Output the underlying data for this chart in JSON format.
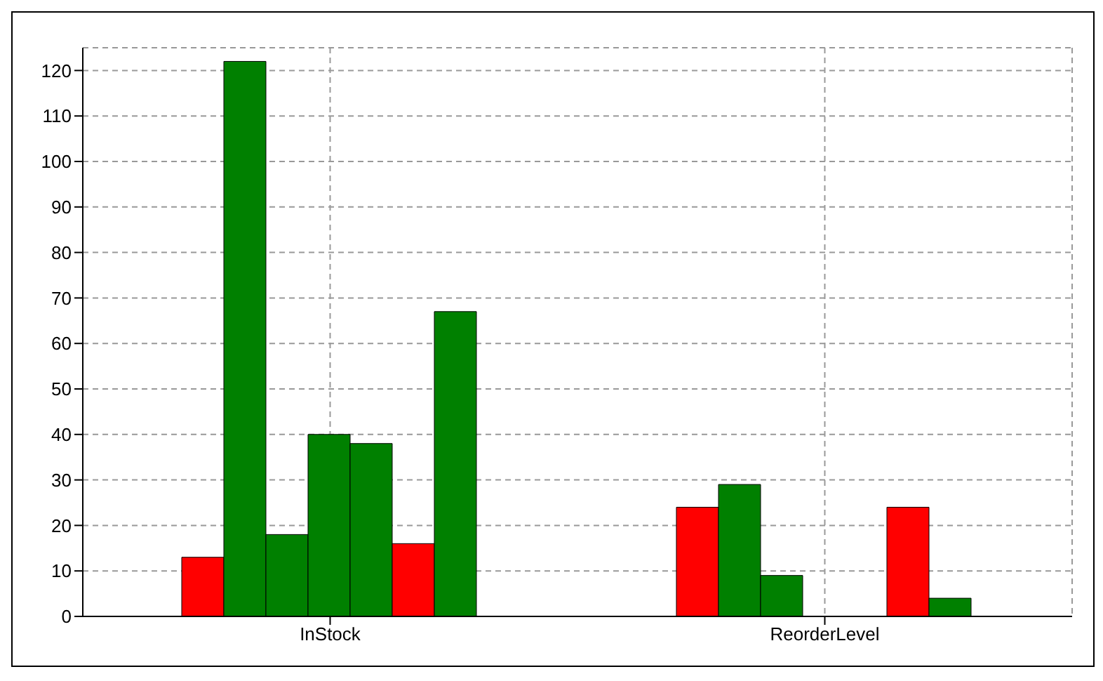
{
  "chart_data": {
    "type": "bar",
    "categories": [
      "InStock",
      "ReorderLevel"
    ],
    "series": [
      {
        "color": "#ff0000",
        "values": [
          13,
          24
        ]
      },
      {
        "color": "#008000",
        "values": [
          122,
          29
        ]
      },
      {
        "color": "#008000",
        "values": [
          18,
          9
        ]
      },
      {
        "color": "#008000",
        "values": [
          40,
          0
        ]
      },
      {
        "color": "#008000",
        "values": [
          38,
          0
        ]
      },
      {
        "color": "#ff0000",
        "values": [
          16,
          24
        ]
      },
      {
        "color": "#008000",
        "values": [
          67,
          4
        ]
      }
    ],
    "ylim": [
      0,
      125
    ],
    "yticks": [
      0,
      10,
      20,
      30,
      40,
      50,
      60,
      70,
      80,
      90,
      100,
      110,
      120
    ],
    "grid": true,
    "legend": false
  }
}
